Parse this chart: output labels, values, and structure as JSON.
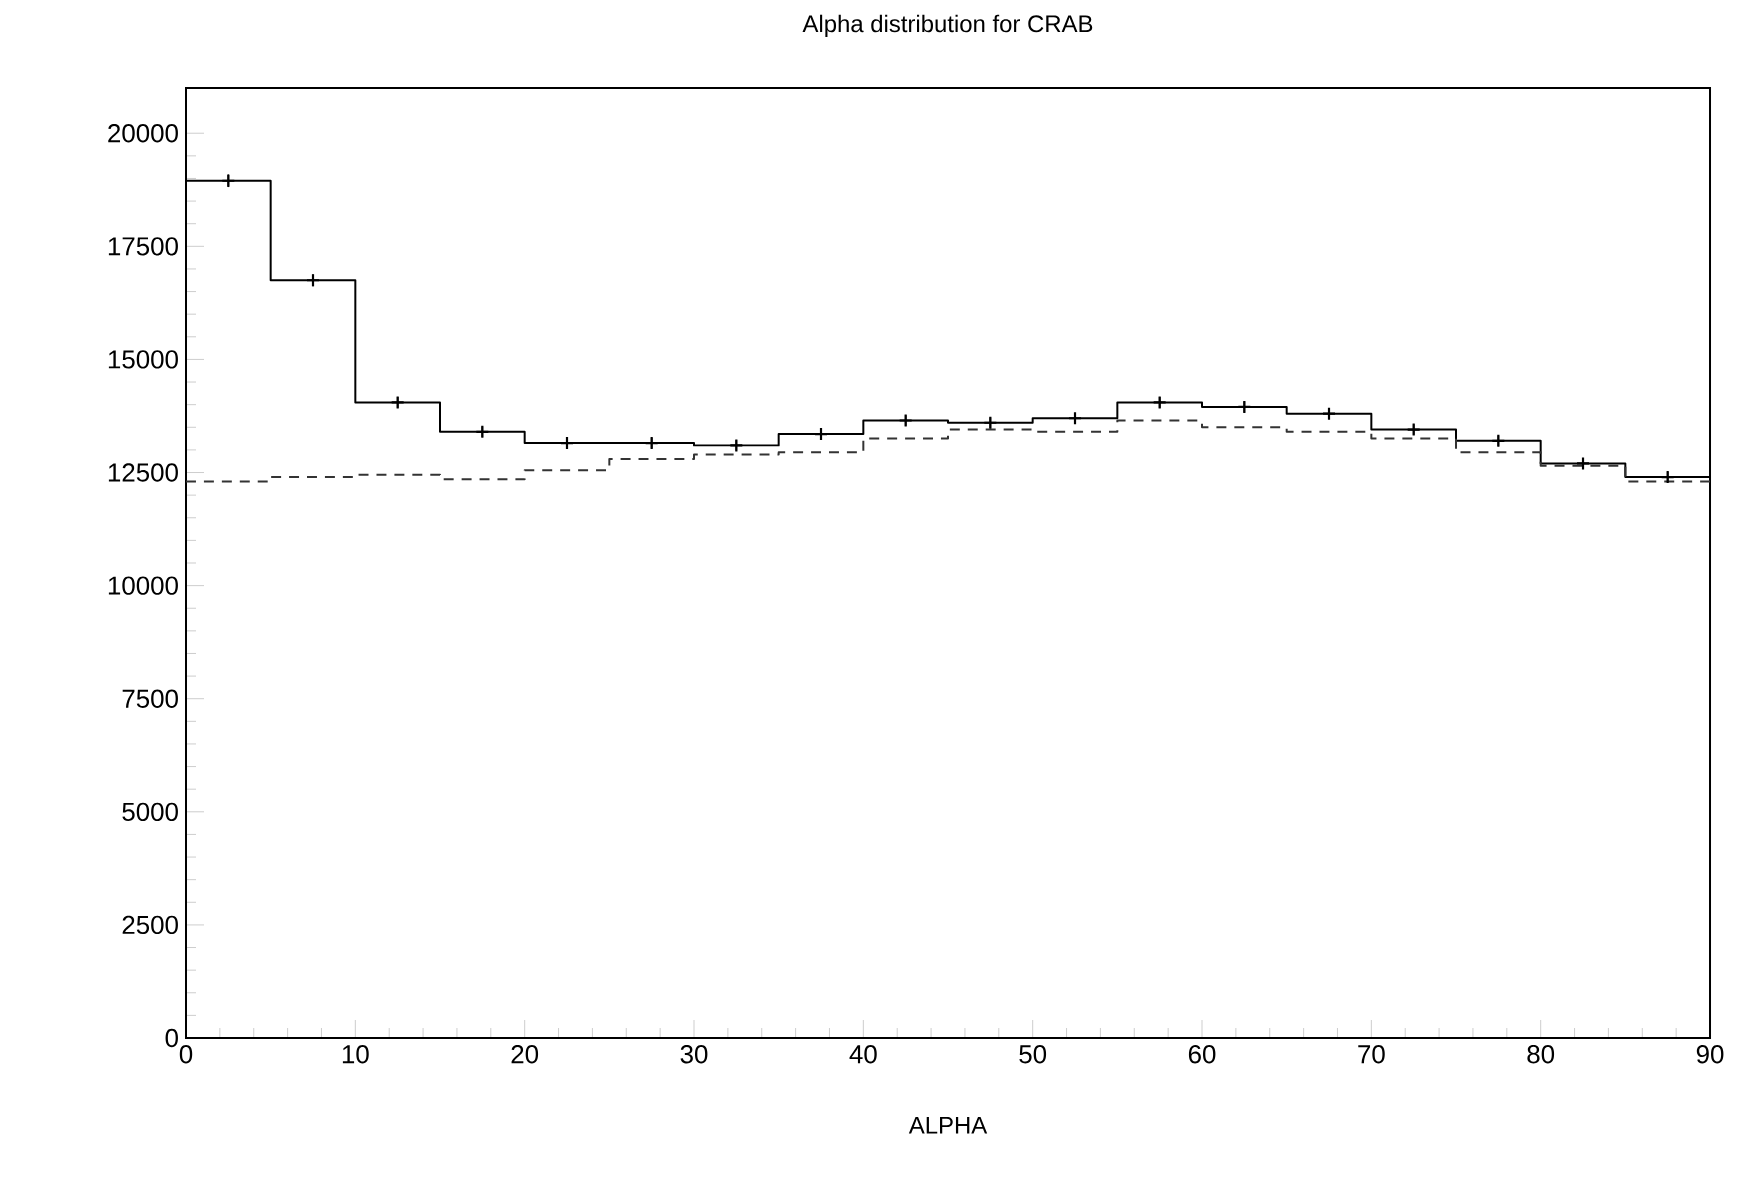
{
  "chart_data": {
    "type": "histogram",
    "title": "Alpha distribution for CRAB",
    "xlabel": "ALPHA",
    "bins": [
      0,
      5,
      10,
      15,
      20,
      25,
      30,
      35,
      40,
      45,
      50,
      55,
      60,
      65,
      70,
      75,
      80,
      85,
      90
    ],
    "series": [
      {
        "color": "#000000",
        "line_style": "solid",
        "values": [
          18950,
          16750,
          14050,
          13400,
          13150,
          13150,
          13100,
          13350,
          13650,
          13600,
          13700,
          14050,
          13950,
          13800,
          13450,
          13200,
          12700,
          12400
        ]
      },
      {
        "color": "#333333",
        "line_style": "dashed",
        "values": [
          12300,
          12400,
          12450,
          12350,
          12550,
          12800,
          12900,
          12950,
          13250,
          13450,
          13400,
          13650,
          13500,
          13400,
          13250,
          12950,
          12650,
          12300
        ]
      },
      {
        "type": "scatter",
        "marker": "cross",
        "color": "#000000",
        "x": [
          2.5,
          7.5,
          12.5,
          17.5,
          22.5,
          27.5,
          32.5,
          37.5,
          42.5,
          47.5,
          52.5,
          57.5,
          62.5,
          67.5,
          72.5,
          77.5,
          82.5,
          87.5
        ],
        "values": [
          18950,
          16750,
          14050,
          13400,
          13150,
          13150,
          13100,
          13350,
          13650,
          13600,
          13700,
          14050,
          13950,
          13800,
          13450,
          13200,
          12700,
          12400
        ],
        "errors": [
          140,
          130,
          120,
          115,
          115,
          115,
          115,
          115,
          115,
          115,
          115,
          120,
          120,
          115,
          115,
          115,
          115,
          110
        ]
      }
    ],
    "xlim": [
      0,
      90
    ],
    "ylim": [
      0,
      21000
    ],
    "xticks": [
      0,
      10,
      20,
      30,
      40,
      50,
      60,
      70,
      80,
      90
    ],
    "yticks": [
      0,
      2500,
      5000,
      7500,
      10000,
      12500,
      15000,
      17500,
      20000
    ]
  }
}
